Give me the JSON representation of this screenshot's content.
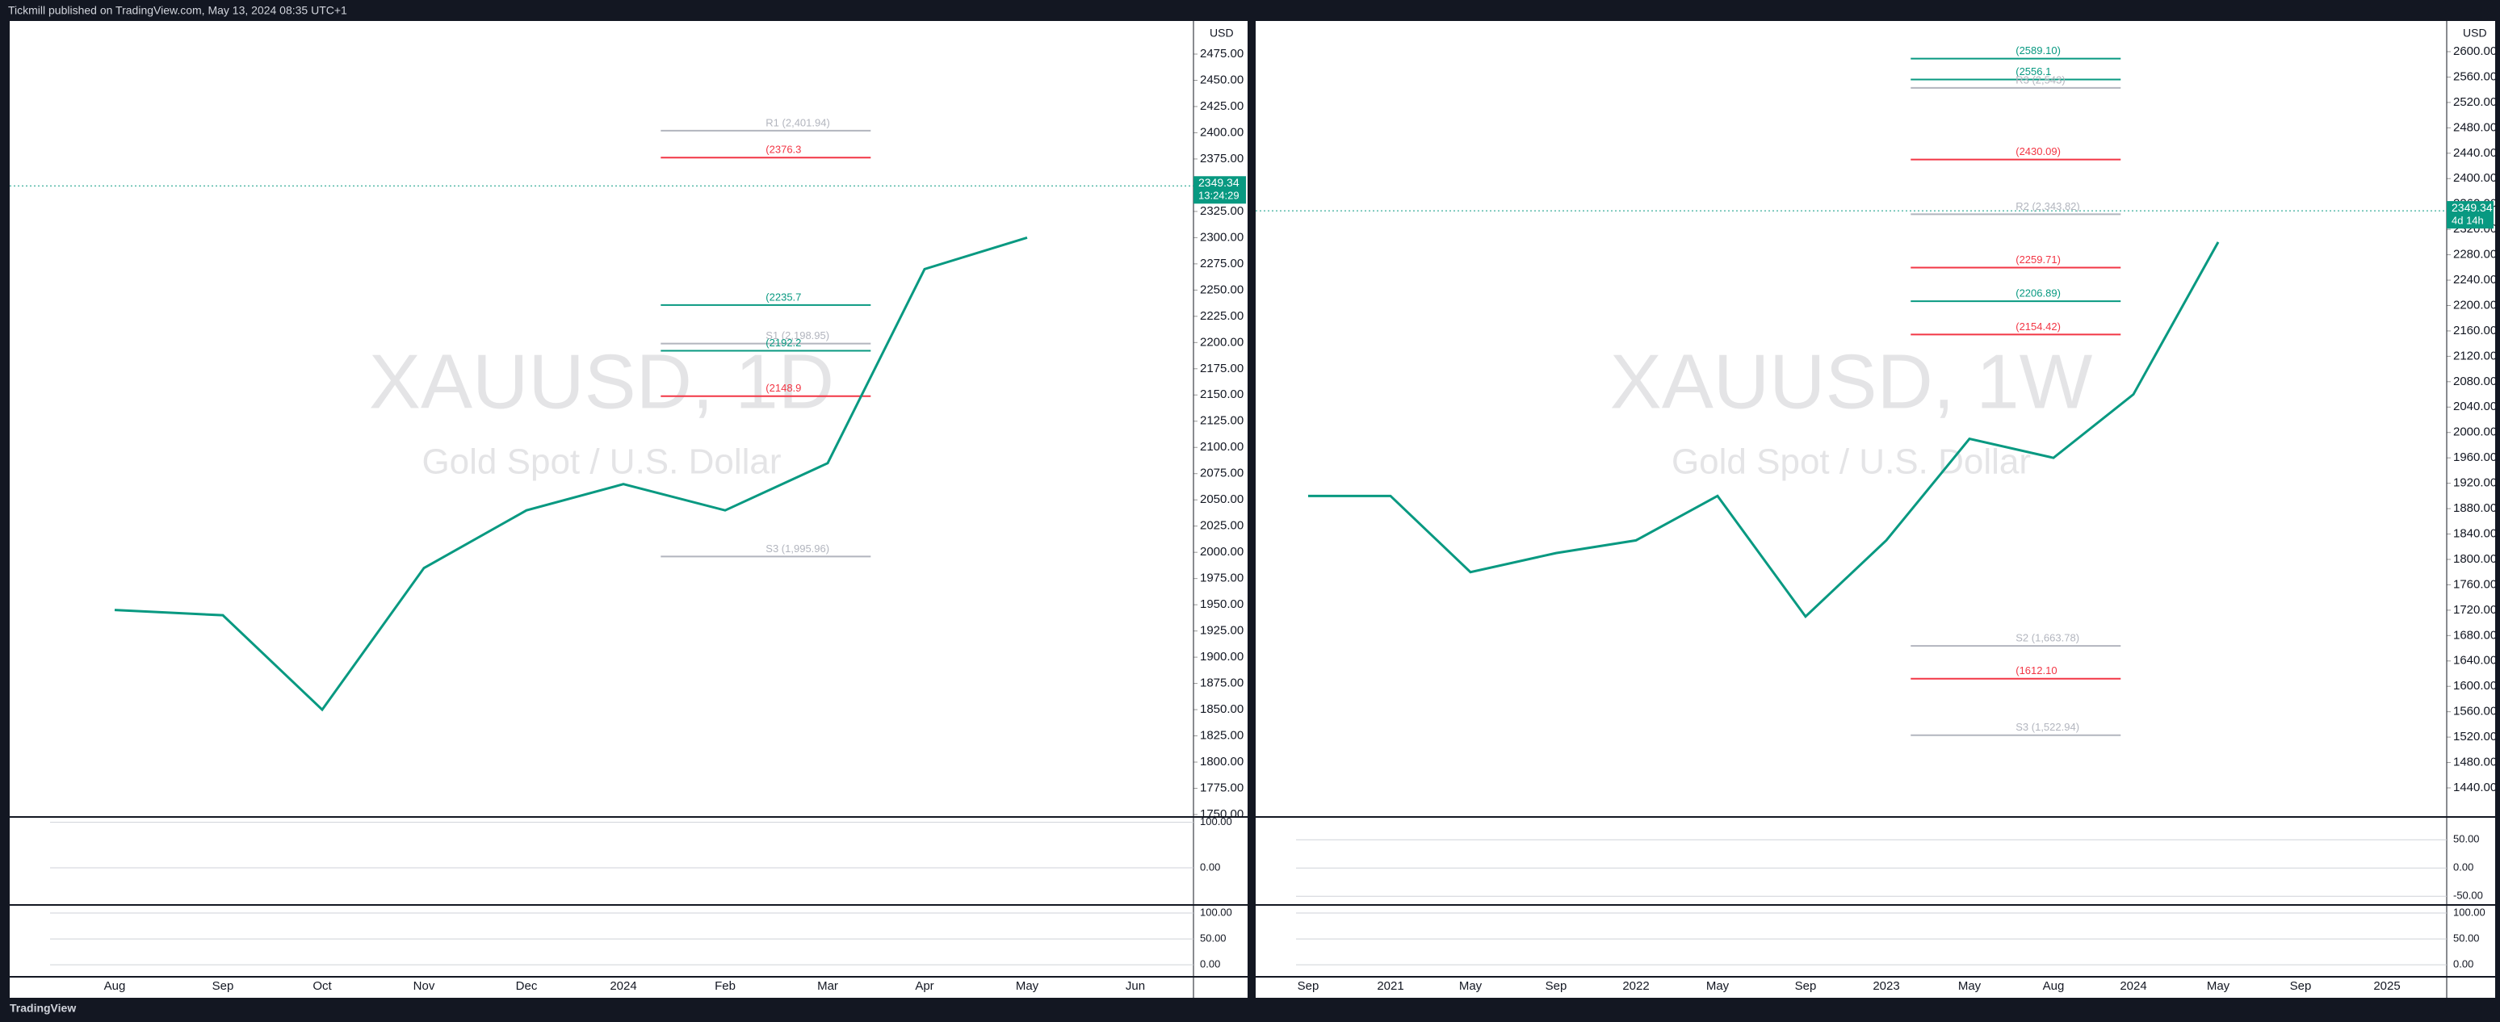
{
  "header": {
    "text": "Tickmill published on TradingView.com, May 13, 2024 08:35 UTC+1",
    "footer": "TradingView"
  },
  "chart_data": [
    {
      "type": "line",
      "symbol": "XAUUSD, 1D",
      "description": "Gold Spot / U.S. Dollar",
      "currency": "USD",
      "color": "#089981",
      "categories": [
        "Aug",
        "Sep",
        "Oct",
        "Nov",
        "Dec",
        "2024",
        "Feb",
        "Mar",
        "Apr",
        "May",
        "Jun"
      ],
      "values": [
        1945,
        1940,
        1850,
        1985,
        2040,
        2065,
        2040,
        2085,
        2270,
        2300,
        null
      ],
      "price_label": {
        "value": 2349.34,
        "label": "2349.34",
        "timer": "13:24:29"
      },
      "ylim": [
        1750,
        2475
      ],
      "yticks": [
        {
          "value": 2475,
          "label": "2475.00"
        },
        {
          "value": 2450,
          "label": "2450.00"
        },
        {
          "value": 2425,
          "label": "2425.00"
        },
        {
          "value": 2400,
          "label": "2400.00"
        },
        {
          "value": 2375,
          "label": "2375.00"
        },
        {
          "value": 2350,
          "label": "2350.00"
        },
        {
          "value": 2325,
          "label": "2325.00"
        },
        {
          "value": 2300,
          "label": "2300.00"
        },
        {
          "value": 2275,
          "label": "2275.00"
        },
        {
          "value": 2250,
          "label": "2250.00"
        },
        {
          "value": 2225,
          "label": "2225.00"
        },
        {
          "value": 2200,
          "label": "2200.00"
        },
        {
          "value": 2175,
          "label": "2175.00"
        },
        {
          "value": 2150,
          "label": "2150.00"
        },
        {
          "value": 2125,
          "label": "2125.00"
        },
        {
          "value": 2100,
          "label": "2100.00"
        },
        {
          "value": 2075,
          "label": "2075.00"
        },
        {
          "value": 2050,
          "label": "2050.00"
        },
        {
          "value": 2025,
          "label": "2025.00"
        },
        {
          "value": 2000,
          "label": "2000.00"
        },
        {
          "value": 1975,
          "label": "1975.00"
        },
        {
          "value": 1950,
          "label": "1950.00"
        },
        {
          "value": 1925,
          "label": "1925.00"
        },
        {
          "value": 1900,
          "label": "1900.00"
        },
        {
          "value": 1875,
          "label": "1875.00"
        },
        {
          "value": 1850,
          "label": "1850.00"
        },
        {
          "value": 1825,
          "label": "1825.00"
        },
        {
          "value": 1800,
          "label": "1800.00"
        },
        {
          "value": 1775,
          "label": "1775.00"
        },
        {
          "value": 1750,
          "label": "1750.00"
        }
      ],
      "levels": [
        {
          "value": 2401.94,
          "label": "R1 (2,401.94)",
          "color": "#b2b5be"
        },
        {
          "value": 2376.3,
          "label": "(2376.3",
          "color": "#f23645"
        },
        {
          "value": 2235.7,
          "label": "(2235.7",
          "color": "#089981"
        },
        {
          "value": 2198.95,
          "label": "S1 (2,198.95)",
          "color": "#b2b5be"
        },
        {
          "value": 2192.2,
          "label": "(2192.2",
          "color": "#089981"
        },
        {
          "value": 2148.9,
          "label": "(2148.9",
          "color": "#f23645"
        },
        {
          "value": 1995.96,
          "label": "S3 (1,995.96)",
          "color": "#b2b5be"
        }
      ],
      "osc1": {
        "ylim": [
          -80,
          110
        ],
        "yticks": [
          {
            "value": 100,
            "label": "100.00"
          },
          {
            "value": 0,
            "label": "0.00"
          }
        ]
      },
      "osc2": {
        "ylim": [
          -20,
          114
        ],
        "yticks": [
          {
            "value": 100,
            "label": "100.00"
          },
          {
            "value": 50,
            "label": "50.00"
          },
          {
            "value": 0,
            "label": "0.00"
          }
        ]
      }
    },
    {
      "type": "line",
      "symbol": "XAUUSD, 1W",
      "description": "Gold Spot / U.S. Dollar",
      "currency": "USD",
      "color": "#089981",
      "categories": [
        "Sep",
        "2021",
        "May",
        "Sep",
        "2022",
        "May",
        "Sep",
        "2023",
        "May",
        "Aug",
        "2024",
        "May",
        "Sep",
        "2025"
      ],
      "values": [
        1900,
        1900,
        1780,
        1810,
        1830,
        1900,
        1710,
        1830,
        1990,
        1960,
        2060,
        2300,
        null,
        null
      ],
      "price_label": {
        "value": 2349.34,
        "label": "2349.34",
        "timer": "4d 14h"
      },
      "ylim": [
        1440,
        2600
      ],
      "yticks": [
        {
          "value": 2600,
          "label": "2600.00"
        },
        {
          "value": 2560,
          "label": "2560.00"
        },
        {
          "value": 2520,
          "label": "2520.00"
        },
        {
          "value": 2480,
          "label": "2480.00"
        },
        {
          "value": 2440,
          "label": "2440.00"
        },
        {
          "value": 2400,
          "label": "2400.00"
        },
        {
          "value": 2360,
          "label": "2360.00"
        },
        {
          "value": 2320,
          "label": "2320.00"
        },
        {
          "value": 2280,
          "label": "2280.00"
        },
        {
          "value": 2240,
          "label": "2240.00"
        },
        {
          "value": 2200,
          "label": "2200.00"
        },
        {
          "value": 2160,
          "label": "2160.00"
        },
        {
          "value": 2120,
          "label": "2120.00"
        },
        {
          "value": 2080,
          "label": "2080.00"
        },
        {
          "value": 2040,
          "label": "2040.00"
        },
        {
          "value": 2000,
          "label": "2000.00"
        },
        {
          "value": 1960,
          "label": "1960.00"
        },
        {
          "value": 1920,
          "label": "1920.00"
        },
        {
          "value": 1880,
          "label": "1880.00"
        },
        {
          "value": 1840,
          "label": "1840.00"
        },
        {
          "value": 1800,
          "label": "1800.00"
        },
        {
          "value": 1760,
          "label": "1760.00"
        },
        {
          "value": 1720,
          "label": "1720.00"
        },
        {
          "value": 1680,
          "label": "1680.00"
        },
        {
          "value": 1640,
          "label": "1640.00"
        },
        {
          "value": 1600,
          "label": "1600.00"
        },
        {
          "value": 1560,
          "label": "1560.00"
        },
        {
          "value": 1520,
          "label": "1520.00"
        },
        {
          "value": 1480,
          "label": "1480.00"
        },
        {
          "value": 1440,
          "label": "1440.00"
        }
      ],
      "levels": [
        {
          "value": 2589.1,
          "label": "(2589.10)",
          "color": "#089981"
        },
        {
          "value": 2556.1,
          "label": "(2556.1",
          "color": "#089981"
        },
        {
          "value": 2543,
          "label": "R3 (2,543)",
          "color": "#b2b5be"
        },
        {
          "value": 2430.09,
          "label": "(2430.09)",
          "color": "#f23645"
        },
        {
          "value": 2343.82,
          "label": "R2 (2,343.82)",
          "color": "#b2b5be"
        },
        {
          "value": 2259.71,
          "label": "(2259.71)",
          "color": "#f23645"
        },
        {
          "value": 2206.89,
          "label": "(2206.89)",
          "color": "#089981"
        },
        {
          "value": 2154.42,
          "label": "(2154.42)",
          "color": "#f23645"
        },
        {
          "value": 1663.78,
          "label": "S2 (1,663.78)",
          "color": "#b2b5be"
        },
        {
          "value": 1612.1,
          "label": "(1612.10",
          "color": "#f23645"
        },
        {
          "value": 1522.94,
          "label": "S3 (1,522.94)",
          "color": "#b2b5be"
        }
      ],
      "osc1": {
        "ylim": [
          -64,
          89
        ],
        "yticks": [
          {
            "value": 50,
            "label": "50.00"
          },
          {
            "value": 0,
            "label": "0.00"
          },
          {
            "value": -50,
            "label": "-50.00"
          }
        ]
      },
      "osc2": {
        "ylim": [
          -20,
          114
        ],
        "yticks": [
          {
            "value": 100,
            "label": "100.00"
          },
          {
            "value": 50,
            "label": "50.00"
          },
          {
            "value": 0,
            "label": "0.00"
          }
        ]
      }
    }
  ]
}
